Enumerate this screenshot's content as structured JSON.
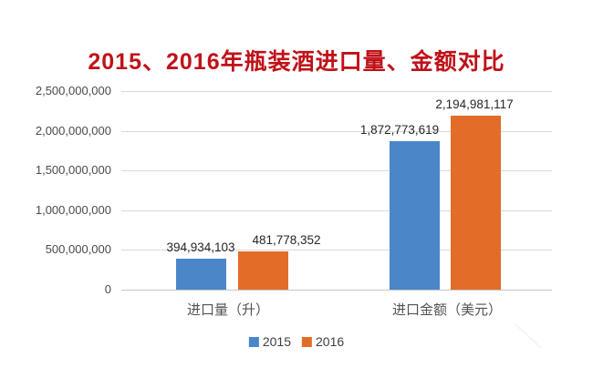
{
  "title": {
    "text": "2015、2016年瓶装酒进口量、金额对比",
    "color": "#c01118"
  },
  "chart_data": {
    "type": "bar",
    "categories": [
      "进口量（升）",
      "进口金额（美元）"
    ],
    "series": [
      {
        "name": "2015",
        "color": "#4a86c8",
        "values": [
          394934103,
          1872773619
        ]
      },
      {
        "name": "2016",
        "color": "#e36d28",
        "values": [
          481778352,
          2194981117
        ]
      }
    ],
    "data_labels": [
      "394,934,103",
      "481,778,352",
      "1,872,773,619",
      "2,194,981,117"
    ],
    "yticks": [
      "0",
      "500,000,000",
      "1,000,000,000",
      "1,500,000,000",
      "2,000,000,000",
      "2,500,000,000"
    ],
    "ylim": [
      0,
      2500000000
    ],
    "ytick_interval": 500000000,
    "grid": true,
    "gridline_color": "#d9d9d9",
    "legend_position": "bottom"
  },
  "legend": {
    "items": [
      {
        "label": "2015",
        "color": "#4a86c8"
      },
      {
        "label": "2016",
        "color": "#e36d28"
      }
    ]
  }
}
